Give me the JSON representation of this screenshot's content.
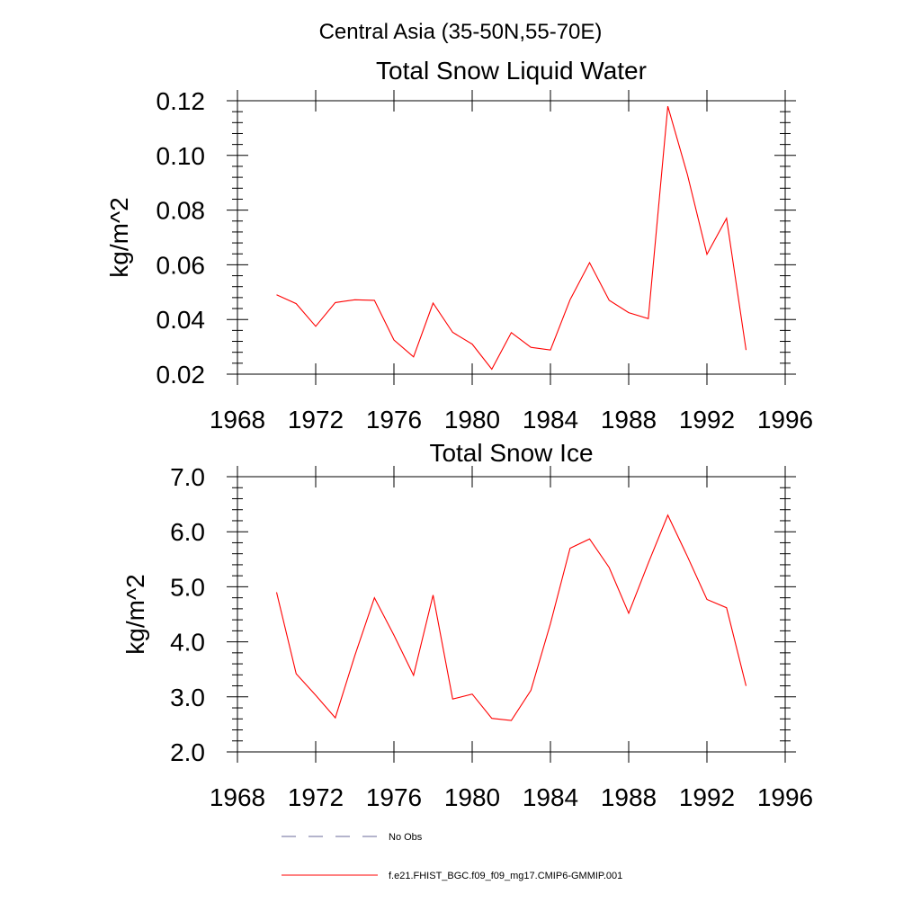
{
  "figure": {
    "main_title": "Central Asia (35-50N,55-70E)"
  },
  "legend": {
    "entries": [
      {
        "label": "No Obs",
        "style": "dashed",
        "color": "#6a6a9a"
      },
      {
        "label": "f.e21.FHIST_BGC.f09_f09_mg17.CMIP6-GMMIP.001",
        "style": "solid",
        "color": "#ff0000"
      }
    ]
  },
  "chart_data": [
    {
      "type": "line",
      "title": "Total Snow Liquid Water",
      "xlabel": "",
      "ylabel": "kg/m^2",
      "xlim": [
        1968,
        1996
      ],
      "ylim": [
        0.02,
        0.12
      ],
      "x_ticks": [
        1968,
        1972,
        1976,
        1980,
        1984,
        1988,
        1992,
        1996
      ],
      "x_tick_labels": [
        "1968",
        "1972",
        "1976",
        "1980",
        "1984",
        "1988",
        "1992",
        "1996"
      ],
      "y_ticks": [
        0.02,
        0.04,
        0.06,
        0.08,
        0.1,
        0.12
      ],
      "y_tick_labels": [
        "0.02",
        "0.04",
        "0.06",
        "0.08",
        "0.10",
        "0.12"
      ],
      "grid": false,
      "legend_position": "bottom",
      "series": [
        {
          "name": "f.e21.FHIST_BGC.f09_f09_mg17.CMIP6-GMMIP.001",
          "color": "#ff0000",
          "x": [
            1970,
            1971,
            1972,
            1973,
            1974,
            1975,
            1976,
            1977,
            1978,
            1979,
            1980,
            1981,
            1982,
            1983,
            1984,
            1985,
            1986,
            1987,
            1988,
            1989,
            1990,
            1991,
            1992,
            1993,
            1994
          ],
          "y": [
            0.049,
            0.0458,
            0.0375,
            0.0462,
            0.0472,
            0.047,
            0.0325,
            0.0263,
            0.046,
            0.0353,
            0.031,
            0.0218,
            0.0352,
            0.0298,
            0.0288,
            0.0472,
            0.0608,
            0.047,
            0.0425,
            0.0403,
            0.118,
            0.093,
            0.0638,
            0.077,
            0.0288
          ]
        }
      ]
    },
    {
      "type": "line",
      "title": "Total Snow Ice",
      "xlabel": "",
      "ylabel": "kg/m^2",
      "xlim": [
        1968,
        1996
      ],
      "ylim": [
        2.0,
        7.0
      ],
      "x_ticks": [
        1968,
        1972,
        1976,
        1980,
        1984,
        1988,
        1992,
        1996
      ],
      "x_tick_labels": [
        "1968",
        "1972",
        "1976",
        "1980",
        "1984",
        "1988",
        "1992",
        "1996"
      ],
      "y_ticks": [
        2.0,
        3.0,
        4.0,
        5.0,
        6.0,
        7.0
      ],
      "y_tick_labels": [
        "2.0",
        "3.0",
        "4.0",
        "5.0",
        "6.0",
        "7.0"
      ],
      "grid": false,
      "legend_position": "bottom",
      "series": [
        {
          "name": "f.e21.FHIST_BGC.f09_f09_mg17.CMIP6-GMMIP.001",
          "color": "#ff0000",
          "x": [
            1970,
            1971,
            1972,
            1973,
            1974,
            1975,
            1976,
            1977,
            1978,
            1979,
            1980,
            1981,
            1982,
            1983,
            1984,
            1985,
            1986,
            1987,
            1988,
            1989,
            1990,
            1991,
            1992,
            1993,
            1994
          ],
          "y": [
            4.9,
            3.42,
            3.03,
            2.62,
            3.75,
            4.8,
            4.12,
            3.39,
            4.85,
            2.96,
            3.05,
            2.61,
            2.57,
            3.12,
            4.33,
            5.7,
            5.87,
            5.35,
            4.52,
            5.43,
            6.3,
            5.55,
            4.77,
            4.62,
            3.2
          ]
        }
      ]
    }
  ]
}
